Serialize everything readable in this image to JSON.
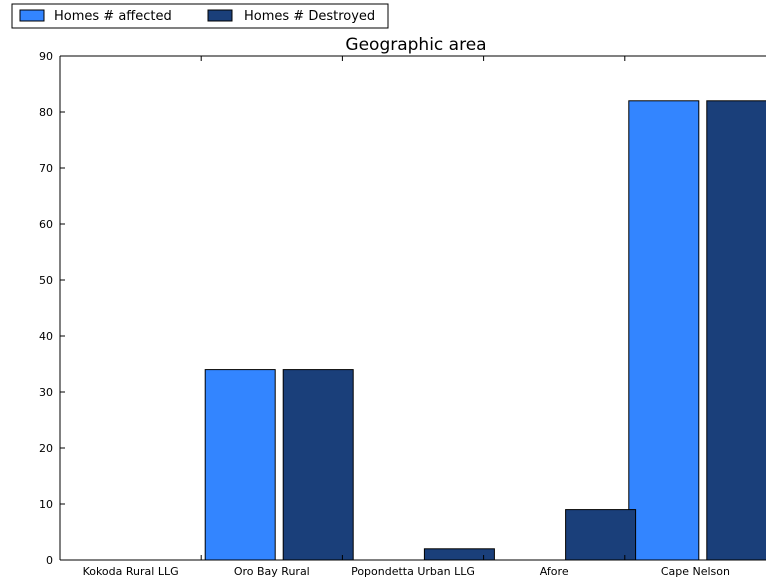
{
  "chart_data": {
    "type": "bar",
    "title": "Geographic area",
    "xlabel": "",
    "ylabel": "",
    "categories": [
      "Kokoda Rural LLG",
      "Oro Bay Rural",
      "Popondetta Urban LLG",
      "Afore",
      "Cape Nelson"
    ],
    "series": [
      {
        "name": "Homes # affected",
        "color": "#3385ff",
        "values": [
          0,
          34,
          0,
          0,
          82
        ]
      },
      {
        "name": "Homes # Destroyed",
        "color": "#1a3f7a",
        "values": [
          0,
          34,
          2,
          9,
          82
        ]
      }
    ],
    "ylim": [
      0,
      90
    ],
    "yticks": [
      0,
      10,
      20,
      30,
      40,
      50,
      60,
      70,
      80,
      90
    ],
    "grid": false,
    "legend_position": "top-left"
  }
}
